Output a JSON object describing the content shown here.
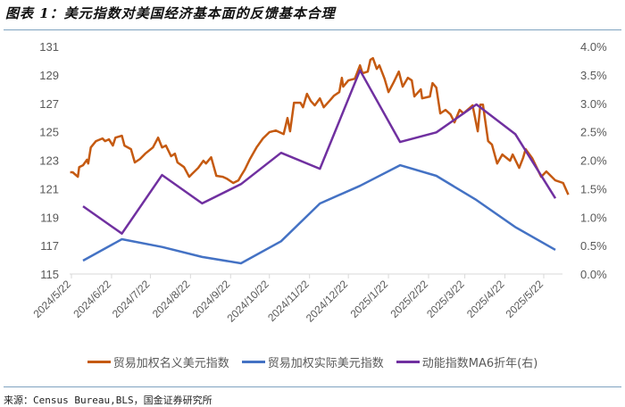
{
  "title": "图表 1：美元指数对美国经济基本面的反馈基本合理",
  "source": "来源：Census Bureau,BLS，国金证券研究所",
  "colors": {
    "nominal": "#C55A11",
    "real": "#4472C4",
    "momentum": "#7030A0",
    "axis": "#D9D9D9",
    "text": "#595959"
  },
  "chart_data": {
    "type": "line",
    "title": "",
    "grid": false,
    "legend_placement": "bottom",
    "x_range": [
      "2024/5/18",
      "2025/6/12"
    ],
    "x_ticks": [
      "2024/5/22",
      "2024/6/22",
      "2024/7/22",
      "2024/8/22",
      "2024/9/22",
      "2024/10/22",
      "2024/11/22",
      "2024/12/22",
      "2025/1/22",
      "2025/2/22",
      "2025/3/22",
      "2025/4/22",
      "2025/5/22"
    ],
    "y_left": {
      "range": [
        115,
        131
      ],
      "ticks": [
        "115",
        "117",
        "119",
        "121",
        "123",
        "125",
        "127",
        "129",
        "131"
      ]
    },
    "y_right": {
      "range": [
        0,
        4.0
      ],
      "ticks": [
        "0.0%",
        "0.5%",
        "1.0%",
        "1.5%",
        "2.0%",
        "2.5%",
        "3.0%",
        "3.5%",
        "4.0%"
      ]
    },
    "series": [
      {
        "name": "贸易加权名义美元指数",
        "axis": "left",
        "color": "#C55A11",
        "points": [
          [
            "2024/5/21",
            122.15
          ],
          [
            "2024/5/23",
            122.15
          ],
          [
            "2024/5/27",
            121.83
          ],
          [
            "2024/5/28",
            122.52
          ],
          [
            "2024/5/31",
            122.65
          ],
          [
            "2024/6/3",
            123.03
          ],
          [
            "2024/6/4",
            122.77
          ],
          [
            "2024/6/6",
            123.9
          ],
          [
            "2024/6/10",
            124.34
          ],
          [
            "2024/6/15",
            124.53
          ],
          [
            "2024/6/17",
            124.34
          ],
          [
            "2024/6/20",
            124.47
          ],
          [
            "2024/6/23",
            124.03
          ],
          [
            "2024/6/25",
            124.59
          ],
          [
            "2024/6/30",
            124.72
          ],
          [
            "2024/7/2",
            124.03
          ],
          [
            "2024/7/7",
            123.78
          ],
          [
            "2024/7/10",
            122.84
          ],
          [
            "2024/7/14",
            123.09
          ],
          [
            "2024/7/18",
            123.46
          ],
          [
            "2024/7/24",
            123.9
          ],
          [
            "2024/7/28",
            124.59
          ],
          [
            "2024/7/31",
            123.9
          ],
          [
            "2024/8/3",
            124.03
          ],
          [
            "2024/8/7",
            123.28
          ],
          [
            "2024/8/10",
            123.46
          ],
          [
            "2024/8/12",
            122.84
          ],
          [
            "2024/8/17",
            122.52
          ],
          [
            "2024/8/21",
            121.83
          ],
          [
            "2024/8/23",
            122.02
          ],
          [
            "2024/8/28",
            122.46
          ],
          [
            "2024/9/1",
            122.96
          ],
          [
            "2024/9/3",
            122.77
          ],
          [
            "2024/9/7",
            123.21
          ],
          [
            "2024/9/11",
            121.9
          ],
          [
            "2024/9/16",
            121.83
          ],
          [
            "2024/9/19",
            121.71
          ],
          [
            "2024/9/24",
            121.4
          ],
          [
            "2024/9/28",
            121.58
          ],
          [
            "2024/9/30",
            121.9
          ],
          [
            "2024/10/3",
            122.34
          ],
          [
            "2024/10/7",
            123.09
          ],
          [
            "2024/10/12",
            123.9
          ],
          [
            "2024/10/17",
            124.53
          ],
          [
            "2024/10/22",
            124.97
          ],
          [
            "2024/10/27",
            125.09
          ],
          [
            "2024/11/2",
            124.84
          ],
          [
            "2024/11/5",
            125.97
          ],
          [
            "2024/11/7",
            125.03
          ],
          [
            "2024/11/10",
            127.04
          ],
          [
            "2024/11/15",
            127.04
          ],
          [
            "2024/11/17",
            126.72
          ],
          [
            "2024/11/20",
            127.67
          ],
          [
            "2024/11/23",
            127.16
          ],
          [
            "2024/11/26",
            126.85
          ],
          [
            "2024/11/30",
            127.35
          ],
          [
            "2024/12/3",
            126.72
          ],
          [
            "2024/12/8",
            127.23
          ],
          [
            "2024/12/11",
            127.54
          ],
          [
            "2024/12/15",
            127.79
          ],
          [
            "2024/12/17",
            128.79
          ],
          [
            "2024/12/18",
            128.17
          ],
          [
            "2024/12/22",
            128.61
          ],
          [
            "2024/12/27",
            128.73
          ],
          [
            "2024/12/31",
            129.67
          ],
          [
            "2025/1/2",
            129.11
          ],
          [
            "2025/1/6",
            129.23
          ],
          [
            "2025/1/8",
            130.05
          ],
          [
            "2025/1/10",
            130.17
          ],
          [
            "2025/1/13",
            129.42
          ],
          [
            "2025/1/15",
            129.67
          ],
          [
            "2025/1/19",
            128.73
          ],
          [
            "2025/1/22",
            127.79
          ],
          [
            "2025/1/26",
            128.48
          ],
          [
            "2025/1/30",
            129.23
          ],
          [
            "2025/2/2",
            128.17
          ],
          [
            "2025/2/6",
            128.79
          ],
          [
            "2025/2/9",
            128.61
          ],
          [
            "2025/2/11",
            127.48
          ],
          [
            "2025/2/16",
            127.98
          ],
          [
            "2025/2/17",
            127.35
          ],
          [
            "2025/2/23",
            127.48
          ],
          [
            "2025/2/25",
            128.42
          ],
          [
            "2025/2/28",
            128.1
          ],
          [
            "2025/3/3",
            126.29
          ],
          [
            "2025/3/7",
            126.54
          ],
          [
            "2025/3/11",
            126.22
          ],
          [
            "2025/3/14",
            125.66
          ],
          [
            "2025/3/18",
            126.54
          ],
          [
            "2025/3/21",
            126.29
          ],
          [
            "2025/3/28",
            126.85
          ],
          [
            "2025/4/1",
            125.03
          ],
          [
            "2025/4/3",
            126.91
          ],
          [
            "2025/4/5",
            126.91
          ],
          [
            "2025/4/9",
            124.34
          ],
          [
            "2025/4/12",
            124.09
          ],
          [
            "2025/4/16",
            122.77
          ],
          [
            "2025/4/20",
            123.4
          ],
          [
            "2025/4/26",
            122.96
          ],
          [
            "2025/4/28",
            123.4
          ],
          [
            "2025/5/3",
            122.46
          ],
          [
            "2025/5/6",
            123.15
          ],
          [
            "2025/5/8",
            123.78
          ],
          [
            "2025/5/13",
            123.15
          ],
          [
            "2025/5/20",
            121.83
          ],
          [
            "2025/5/24",
            122.21
          ],
          [
            "2025/5/31",
            121.58
          ],
          [
            "2025/6/6",
            121.4
          ],
          [
            "2025/6/10",
            120.58
          ]
        ]
      },
      {
        "name": "贸易加权实际美元指数",
        "axis": "left",
        "color": "#4472C4",
        "points": [
          [
            "2024/5/31",
            115.94
          ],
          [
            "2024/6/30",
            117.45
          ],
          [
            "2024/7/31",
            116.9
          ],
          [
            "2024/8/31",
            116.2
          ],
          [
            "2024/9/30",
            115.75
          ],
          [
            "2024/10/31",
            117.3
          ],
          [
            "2024/11/30",
            119.96
          ],
          [
            "2024/12/31",
            121.2
          ],
          [
            "2025/1/31",
            122.65
          ],
          [
            "2025/2/28",
            121.9
          ],
          [
            "2025/3/31",
            120.2
          ],
          [
            "2025/4/30",
            118.3
          ],
          [
            "2025/5/31",
            116.7
          ]
        ]
      },
      {
        "name": "动能指数MA6折年(右)",
        "axis": "right",
        "color": "#7030A0",
        "points": [
          [
            "2024/5/31",
            1.19
          ],
          [
            "2024/6/30",
            0.71
          ],
          [
            "2024/7/31",
            1.74
          ],
          [
            "2024/8/31",
            1.24
          ],
          [
            "2024/9/30",
            1.58
          ],
          [
            "2024/10/31",
            2.13
          ],
          [
            "2024/11/30",
            1.85
          ],
          [
            "2024/12/31",
            3.58
          ],
          [
            "2025/1/31",
            2.32
          ],
          [
            "2025/2/28",
            2.49
          ],
          [
            "2025/3/31",
            2.98
          ],
          [
            "2025/4/30",
            2.46
          ],
          [
            "2025/5/31",
            1.33
          ]
        ]
      }
    ]
  }
}
